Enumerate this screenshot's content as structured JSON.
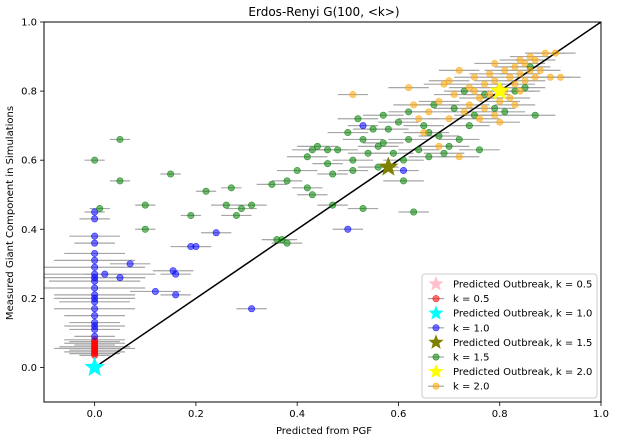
{
  "chart_data": {
    "type": "scatter",
    "title": "Erdos-Renyi G(100, <k>)",
    "xlabel": "Predicted from PGF",
    "ylabel": "Measured Giant Component in Simulations",
    "xlim": [
      -0.1,
      1.0
    ],
    "ylim": [
      -0.1,
      1.0
    ],
    "xticks": [
      "0.0",
      "0.2",
      "0.4",
      "0.6",
      "0.8",
      "1.0"
    ],
    "yticks": [
      "0.0",
      "0.2",
      "0.4",
      "0.6",
      "0.8",
      "1.0"
    ],
    "grid": false,
    "legend_position": "lower-right",
    "reference_line": {
      "x": [
        0,
        1
      ],
      "y": [
        0,
        1
      ],
      "color": "#000000"
    },
    "errorbar_color": "#a6a6a6",
    "series": [
      {
        "name": "k = 0.5",
        "color": "#ff0000",
        "predicted_label": "Predicted Outbreak, k = 0.5",
        "predicted_color": "#ffc0cb",
        "predicted": [
          0.0,
          0.0
        ],
        "points": [
          [
            0,
            0.04,
            0.05
          ],
          [
            0,
            0.045,
            0.06
          ],
          [
            0,
            0.05,
            0.05
          ],
          [
            0,
            0.06,
            0.07
          ],
          [
            0,
            0.07,
            0.06
          ],
          [
            0,
            0.035,
            0.03
          ],
          [
            0,
            0.055,
            0.08
          ],
          [
            0,
            0.065,
            0.04
          ],
          [
            0,
            0.075,
            0.05
          ],
          [
            0,
            0.08,
            0.06
          ]
        ]
      },
      {
        "name": "k = 1.0",
        "color": "#0000ff",
        "predicted_label": "Predicted Outbreak, k = 1.0",
        "predicted_color": "#00ffff",
        "predicted": [
          0.0,
          0.0
        ],
        "points": [
          [
            0,
            0.45,
            0.02
          ],
          [
            0,
            0.43,
            0.03
          ],
          [
            0,
            0.38,
            0.05
          ],
          [
            0,
            0.36,
            0.04
          ],
          [
            0,
            0.33,
            0.06
          ],
          [
            0,
            0.31,
            0.08
          ],
          [
            0,
            0.29,
            0.1
          ],
          [
            0,
            0.27,
            0.12
          ],
          [
            0,
            0.25,
            0.09
          ],
          [
            0,
            0.23,
            0.1
          ],
          [
            0,
            0.21,
            0.08
          ],
          [
            0,
            0.19,
            0.07
          ],
          [
            0,
            0.17,
            0.08
          ],
          [
            0,
            0.15,
            0.06
          ],
          [
            0,
            0.13,
            0.05
          ],
          [
            0,
            0.11,
            0.05
          ],
          [
            0,
            0.09,
            0.04
          ],
          [
            0,
            0.12,
            0.06
          ],
          [
            0,
            0.2,
            0.08
          ],
          [
            0,
            0.26,
            0.1
          ],
          [
            0.02,
            0.27,
            0.04
          ],
          [
            0.05,
            0.26,
            0.05
          ],
          [
            0.07,
            0.3,
            0.04
          ],
          [
            0.12,
            0.22,
            0.05
          ],
          [
            0.155,
            0.28,
            0.04
          ],
          [
            0.16,
            0.27,
            0.03
          ],
          [
            0.16,
            0.21,
            0.03
          ],
          [
            0.19,
            0.35,
            0.04
          ],
          [
            0.2,
            0.35,
            0.03
          ],
          [
            0.24,
            0.39,
            0.03
          ],
          [
            0.31,
            0.17,
            0.03
          ],
          [
            0.5,
            0.4,
            0.03
          ],
          [
            0.53,
            0.7,
            0.03
          ],
          [
            0.61,
            0.57,
            0.03
          ]
        ]
      },
      {
        "name": "k = 1.5",
        "color": "#008000",
        "predicted_label": "Predicted Outbreak, k = 1.5",
        "predicted_color": "#808000",
        "predicted": [
          0.58,
          0.58
        ],
        "points": [
          [
            0,
            0.6,
            0.02
          ],
          [
            0.01,
            0.46,
            0.02
          ],
          [
            0.05,
            0.66,
            0.02
          ],
          [
            0.05,
            0.54,
            0.02
          ],
          [
            0.1,
            0.47,
            0.02
          ],
          [
            0.1,
            0.4,
            0.02
          ],
          [
            0.15,
            0.56,
            0.02
          ],
          [
            0.19,
            0.44,
            0.02
          ],
          [
            0.22,
            0.51,
            0.02
          ],
          [
            0.26,
            0.47,
            0.03
          ],
          [
            0.27,
            0.52,
            0.02
          ],
          [
            0.28,
            0.44,
            0.03
          ],
          [
            0.29,
            0.46,
            0.03
          ],
          [
            0.31,
            0.47,
            0.03
          ],
          [
            0.35,
            0.53,
            0.03
          ],
          [
            0.36,
            0.37,
            0.03
          ],
          [
            0.37,
            0.37,
            0.03
          ],
          [
            0.38,
            0.36,
            0.03
          ],
          [
            0.38,
            0.54,
            0.03
          ],
          [
            0.4,
            0.57,
            0.04
          ],
          [
            0.42,
            0.52,
            0.03
          ],
          [
            0.42,
            0.61,
            0.04
          ],
          [
            0.43,
            0.5,
            0.03
          ],
          [
            0.43,
            0.63,
            0.04
          ],
          [
            0.44,
            0.64,
            0.04
          ],
          [
            0.46,
            0.63,
            0.04
          ],
          [
            0.46,
            0.59,
            0.03
          ],
          [
            0.47,
            0.47,
            0.03
          ],
          [
            0.47,
            0.56,
            0.03
          ],
          [
            0.48,
            0.63,
            0.04
          ],
          [
            0.5,
            0.68,
            0.04
          ],
          [
            0.51,
            0.6,
            0.04
          ],
          [
            0.51,
            0.57,
            0.03
          ],
          [
            0.52,
            0.72,
            0.04
          ],
          [
            0.53,
            0.46,
            0.03
          ],
          [
            0.53,
            0.66,
            0.04
          ],
          [
            0.54,
            0.62,
            0.04
          ],
          [
            0.55,
            0.69,
            0.04
          ],
          [
            0.56,
            0.64,
            0.04
          ],
          [
            0.56,
            0.58,
            0.04
          ],
          [
            0.57,
            0.73,
            0.04
          ],
          [
            0.57,
            0.65,
            0.04
          ],
          [
            0.58,
            0.69,
            0.04
          ],
          [
            0.59,
            0.62,
            0.04
          ],
          [
            0.6,
            0.71,
            0.04
          ],
          [
            0.61,
            0.54,
            0.04
          ],
          [
            0.61,
            0.6,
            0.04
          ],
          [
            0.62,
            0.74,
            0.04
          ],
          [
            0.62,
            0.66,
            0.04
          ],
          [
            0.63,
            0.45,
            0.03
          ],
          [
            0.64,
            0.63,
            0.04
          ],
          [
            0.65,
            0.7,
            0.04
          ],
          [
            0.66,
            0.68,
            0.04
          ],
          [
            0.66,
            0.61,
            0.04
          ],
          [
            0.67,
            0.76,
            0.04
          ],
          [
            0.68,
            0.67,
            0.04
          ],
          [
            0.69,
            0.62,
            0.04
          ],
          [
            0.7,
            0.64,
            0.04
          ],
          [
            0.71,
            0.75,
            0.04
          ],
          [
            0.72,
            0.66,
            0.04
          ],
          [
            0.73,
            0.8,
            0.04
          ],
          [
            0.74,
            0.7,
            0.04
          ],
          [
            0.75,
            0.73,
            0.04
          ],
          [
            0.77,
            0.79,
            0.04
          ],
          [
            0.76,
            0.63,
            0.04
          ],
          [
            0.79,
            0.75,
            0.04
          ],
          [
            0.81,
            0.74,
            0.04
          ],
          [
            0.83,
            0.8,
            0.04
          ],
          [
            0.85,
            0.81,
            0.04
          ],
          [
            0.86,
            0.87,
            0.04
          ],
          [
            0.87,
            0.73,
            0.04
          ]
        ]
      },
      {
        "name": "k = 2.0",
        "color": "#ffa500",
        "predicted_label": "Predicted Outbreak, k = 2.0",
        "predicted_color": "#ffff00",
        "predicted": [
          0.8,
          0.8
        ],
        "points": [
          [
            0.51,
            0.79,
            0.03
          ],
          [
            0.62,
            0.81,
            0.04
          ],
          [
            0.63,
            0.76,
            0.04
          ],
          [
            0.64,
            0.72,
            0.04
          ],
          [
            0.65,
            0.68,
            0.04
          ],
          [
            0.66,
            0.74,
            0.04
          ],
          [
            0.68,
            0.77,
            0.04
          ],
          [
            0.68,
            0.64,
            0.04
          ],
          [
            0.7,
            0.72,
            0.04
          ],
          [
            0.7,
            0.83,
            0.04
          ],
          [
            0.71,
            0.79,
            0.04
          ],
          [
            0.72,
            0.61,
            0.04
          ],
          [
            0.73,
            0.74,
            0.04
          ],
          [
            0.74,
            0.81,
            0.04
          ],
          [
            0.74,
            0.76,
            0.04
          ],
          [
            0.75,
            0.84,
            0.04
          ],
          [
            0.76,
            0.78,
            0.04
          ],
          [
            0.76,
            0.72,
            0.04
          ],
          [
            0.77,
            0.82,
            0.04
          ],
          [
            0.77,
            0.75,
            0.04
          ],
          [
            0.78,
            0.85,
            0.04
          ],
          [
            0.78,
            0.79,
            0.04
          ],
          [
            0.79,
            0.73,
            0.04
          ],
          [
            0.79,
            0.83,
            0.04
          ],
          [
            0.8,
            0.77,
            0.04
          ],
          [
            0.8,
            0.71,
            0.04
          ],
          [
            0.81,
            0.86,
            0.04
          ],
          [
            0.81,
            0.8,
            0.04
          ],
          [
            0.82,
            0.84,
            0.04
          ],
          [
            0.82,
            0.78,
            0.04
          ],
          [
            0.83,
            0.87,
            0.04
          ],
          [
            0.83,
            0.82,
            0.04
          ],
          [
            0.84,
            0.89,
            0.04
          ],
          [
            0.84,
            0.85,
            0.04
          ],
          [
            0.84,
            0.8,
            0.04
          ],
          [
            0.85,
            0.88,
            0.04
          ],
          [
            0.85,
            0.83,
            0.04
          ],
          [
            0.86,
            0.9,
            0.04
          ],
          [
            0.86,
            0.86,
            0.04
          ],
          [
            0.87,
            0.84,
            0.04
          ],
          [
            0.88,
            0.86,
            0.04
          ],
          [
            0.89,
            0.91,
            0.04
          ],
          [
            0.9,
            0.84,
            0.04
          ],
          [
            0.91,
            0.91,
            0.04
          ],
          [
            0.92,
            0.84,
            0.04
          ],
          [
            0.8,
            0.81,
            0.04
          ],
          [
            0.79,
            0.88,
            0.04
          ],
          [
            0.75,
            0.8,
            0.04
          ],
          [
            0.72,
            0.86,
            0.04
          ],
          [
            0.69,
            0.82,
            0.04
          ],
          [
            0.83,
            0.76,
            0.04
          ],
          [
            0.87,
            0.89,
            0.04
          ]
        ]
      }
    ]
  }
}
